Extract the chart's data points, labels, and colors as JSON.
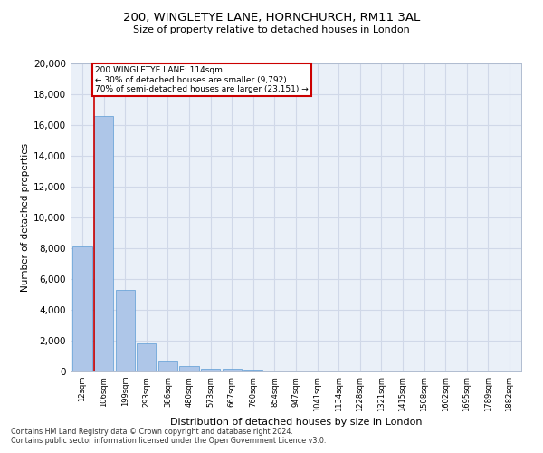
{
  "title1": "200, WINGLETYE LANE, HORNCHURCH, RM11 3AL",
  "title2": "Size of property relative to detached houses in London",
  "xlabel": "Distribution of detached houses by size in London",
  "ylabel": "Number of detached properties",
  "categories": [
    "12sqm",
    "106sqm",
    "199sqm",
    "293sqm",
    "386sqm",
    "480sqm",
    "573sqm",
    "667sqm",
    "760sqm",
    "854sqm",
    "947sqm",
    "1041sqm",
    "1134sqm",
    "1228sqm",
    "1321sqm",
    "1415sqm",
    "1508sqm",
    "1602sqm",
    "1695sqm",
    "1789sqm",
    "1882sqm"
  ],
  "values": [
    8100,
    16600,
    5300,
    1800,
    650,
    330,
    200,
    150,
    120,
    0,
    0,
    0,
    0,
    0,
    0,
    0,
    0,
    0,
    0,
    0,
    0
  ],
  "bar_color": "#aec6e8",
  "bar_edge_color": "#5b9bd5",
  "marker_line_color": "#cc0000",
  "annotation_line1": "200 WINGLETYE LANE: 114sqm",
  "annotation_line2": "← 30% of detached houses are smaller (9,792)",
  "annotation_line3": "70% of semi-detached houses are larger (23,151) →",
  "annotation_box_color": "#cc0000",
  "ylim": [
    0,
    20000
  ],
  "yticks": [
    0,
    2000,
    4000,
    6000,
    8000,
    10000,
    12000,
    14000,
    16000,
    18000,
    20000
  ],
  "grid_color": "#d0d8e8",
  "bg_color": "#eaf0f8",
  "footer1": "Contains HM Land Registry data © Crown copyright and database right 2024.",
  "footer2": "Contains public sector information licensed under the Open Government Licence v3.0."
}
